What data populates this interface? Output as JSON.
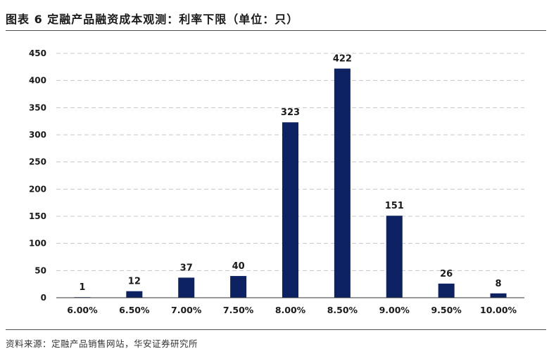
{
  "figure": {
    "title": "图表 6  定融产品融资成本观测：利率下限（单位：只）",
    "source": "资料来源：定融产品销售网站，华安证券研究所"
  },
  "colors": {
    "bar": "#0d2262",
    "grid": "#c8c8c8",
    "axis": "#333333"
  },
  "chart_data": {
    "type": "bar",
    "title": "",
    "xlabel": "",
    "ylabel": "",
    "categories": [
      "6.00%",
      "6.50%",
      "7.00%",
      "7.50%",
      "8.00%",
      "8.50%",
      "9.00%",
      "9.50%",
      "10.00%"
    ],
    "values": [
      1,
      12,
      37,
      40,
      323,
      422,
      151,
      26,
      8
    ],
    "ylim": [
      0,
      450
    ],
    "yticks": [
      0,
      50,
      100,
      150,
      200,
      250,
      300,
      350,
      400,
      450
    ],
    "grid": "horizontal-dashed",
    "data_labels": true,
    "legend": "none"
  }
}
